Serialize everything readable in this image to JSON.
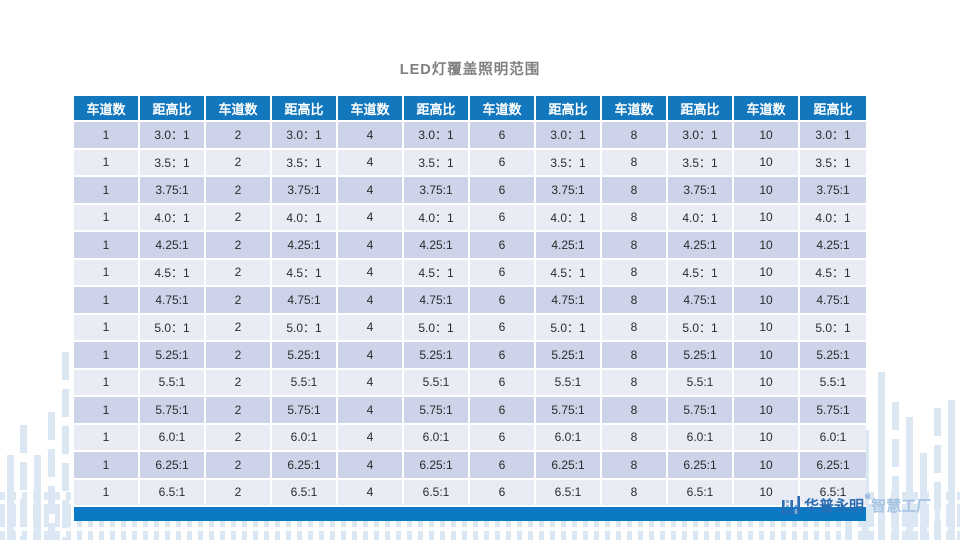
{
  "title": "LED灯覆盖照明范围",
  "colors": {
    "header_bg": "#1277bd",
    "footer_bar": "#0b79c3",
    "row_odd": "#cdd3e8",
    "row_even": "#e9ecf5",
    "decor_bar": "#dbe7f2",
    "title_color": "#7f7f7f"
  },
  "table": {
    "headers": [
      "车道数",
      "距高比",
      "车道数",
      "距高比",
      "车道数",
      "距高比",
      "车道数",
      "距高比",
      "车道数",
      "距高比",
      "车道数",
      "距高比"
    ],
    "rows": [
      [
        "1",
        "3.0：1",
        "2",
        "3.0：1",
        "4",
        "3.0：1",
        "6",
        "3.0：1",
        "8",
        "3.0：1",
        "10",
        "3.0：1"
      ],
      [
        "1",
        "3.5：1",
        "2",
        "3.5：1",
        "4",
        "3.5：1",
        "6",
        "3.5：1",
        "8",
        "3.5：1",
        "10",
        "3.5：1"
      ],
      [
        "1",
        "3.75:1",
        "2",
        "3.75:1",
        "4",
        "3.75:1",
        "6",
        "3.75:1",
        "8",
        "3.75:1",
        "10",
        "3.75:1"
      ],
      [
        "1",
        "4.0：1",
        "2",
        "4.0：1",
        "4",
        "4.0：1",
        "6",
        "4.0：1",
        "8",
        "4.0：1",
        "10",
        "4.0：1"
      ],
      [
        "1",
        "4.25:1",
        "2",
        "4.25:1",
        "4",
        "4.25:1",
        "6",
        "4.25:1",
        "8",
        "4.25:1",
        "10",
        "4.25:1"
      ],
      [
        "1",
        "4.5：1",
        "2",
        "4.5：1",
        "4",
        "4.5：1",
        "6",
        "4.5：1",
        "8",
        "4.5：1",
        "10",
        "4.5：1"
      ],
      [
        "1",
        "4.75:1",
        "2",
        "4.75:1",
        "4",
        "4.75:1",
        "6",
        "4.75:1",
        "8",
        "4.75:1",
        "10",
        "4.75:1"
      ],
      [
        "1",
        "5.0：1",
        "2",
        "5.0：1",
        "4",
        "5.0：1",
        "6",
        "5.0：1",
        "8",
        "5.0：1",
        "10",
        "5.0：1"
      ],
      [
        "1",
        "5.25:1",
        "2",
        "5.25:1",
        "4",
        "5.25:1",
        "6",
        "5.25:1",
        "8",
        "5.25:1",
        "10",
        "5.25:1"
      ],
      [
        "1",
        "5.5:1",
        "2",
        "5.5:1",
        "4",
        "5.5:1",
        "6",
        "5.5:1",
        "8",
        "5.5:1",
        "10",
        "5.5:1"
      ],
      [
        "1",
        "5.75:1",
        "2",
        "5.75:1",
        "4",
        "5.75:1",
        "6",
        "5.75:1",
        "8",
        "5.75:1",
        "10",
        "5.75:1"
      ],
      [
        "1",
        "6.0:1",
        "2",
        "6.0:1",
        "4",
        "6.0:1",
        "6",
        "6.0:1",
        "8",
        "6.0:1",
        "10",
        "6.0:1"
      ],
      [
        "1",
        "6.25:1",
        "2",
        "6.25:1",
        "4",
        "6.25:1",
        "6",
        "6.25:1",
        "8",
        "6.25:1",
        "10",
        "6.25:1"
      ],
      [
        "1",
        "6.5:1",
        "2",
        "6.5:1",
        "4",
        "6.5:1",
        "6",
        "6.5:1",
        "8",
        "6.5:1",
        "10",
        "6.5:1"
      ]
    ]
  },
  "logo": {
    "brand": "华普永明",
    "registered_mark": "®",
    "suffix": "智慧工厂",
    "icon": "hpwinner-bars-logo"
  }
}
